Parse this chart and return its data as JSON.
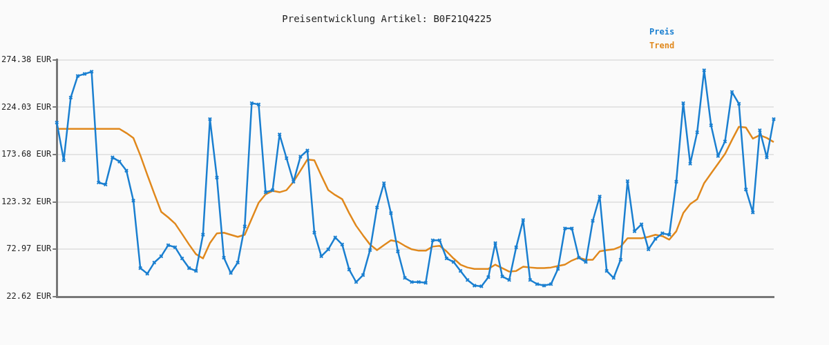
{
  "chart_data": {
    "type": "line",
    "title": "Preisentwicklung Artikel: B0F21Q4225",
    "categories": [
      null,
      null,
      null,
      null,
      null,
      null,
      null,
      null,
      null,
      null,
      null,
      null,
      null,
      null,
      null,
      null,
      null,
      null,
      null,
      null,
      null,
      null,
      null,
      null,
      null,
      null,
      null,
      null,
      null,
      null,
      null,
      null,
      null,
      null,
      null,
      null,
      null,
      null,
      null,
      null,
      null,
      null,
      null,
      null,
      null,
      null,
      null,
      null,
      null,
      null,
      null,
      null,
      null,
      null,
      null,
      null,
      null,
      null,
      null,
      null,
      null,
      null,
      null,
      null,
      null,
      null,
      null,
      null,
      null,
      null,
      null,
      null,
      null,
      null,
      null,
      null,
      null,
      null,
      null,
      null,
      null,
      null,
      null,
      null,
      null,
      null,
      null,
      null,
      null,
      null,
      null,
      null,
      null,
      null,
      null,
      null,
      null,
      null,
      null,
      null,
      null,
      null,
      null,
      null
    ],
    "series": [
      {
        "name": "Preis",
        "color": "#1a7fd0",
        "marker": "cross",
        "values": [
          207.7,
          167.7,
          234.4,
          257.3,
          259.5,
          261.8,
          144.0,
          141.8,
          170.7,
          166.3,
          156.6,
          124.8,
          53.0,
          47.1,
          58.9,
          65.6,
          77.4,
          75.2,
          63.3,
          53.0,
          50.0,
          88.5,
          211.4,
          149.2,
          64.1,
          47.8,
          58.9,
          97.4,
          228.4,
          227.0,
          133.7,
          135.9,
          195.1,
          169.9,
          144.8,
          171.4,
          178.1,
          90.7,
          65.6,
          73.0,
          85.6,
          78.1,
          51.5,
          38.2,
          45.6,
          72.2,
          117.4,
          143.3,
          111.5,
          70.8,
          42.6,
          38.2,
          38.2,
          37.4,
          82.6,
          82.6,
          63.3,
          59.6,
          50.0,
          40.4,
          34.5,
          33.7,
          43.4,
          79.6,
          44.1,
          40.4,
          75.2,
          104.1,
          40.4,
          36.0,
          34.5,
          36.0,
          52.2,
          95.2,
          95.2,
          64.1,
          59.6,
          103.3,
          129.2,
          50.0,
          42.6,
          61.9,
          145.5,
          92.2,
          99.6,
          73.0,
          84.1,
          90.0,
          88.5,
          144.8,
          228.4,
          164.0,
          197.4,
          263.3,
          204.8,
          172.2,
          187.7,
          240.3,
          227.7,
          136.6,
          112.2,
          199.6,
          170.7,
          211.4
        ]
      },
      {
        "name": "Trend",
        "color": "#e0881c",
        "marker": "none",
        "values": [
          201.1,
          201.1,
          201.1,
          201.1,
          201.1,
          201.1,
          201.1,
          201.1,
          201.1,
          201.1,
          196.6,
          191.4,
          172.9,
          152.2,
          132.2,
          112.9,
          107.0,
          100.3,
          89.3,
          78.1,
          67.8,
          63.3,
          79.6,
          90.0,
          90.7,
          88.5,
          86.3,
          88.5,
          105.5,
          122.6,
          131.5,
          135.2,
          133.7,
          135.9,
          144.8,
          156.6,
          168.5,
          167.7,
          151.4,
          135.9,
          130.7,
          126.3,
          111.5,
          98.1,
          87.8,
          78.1,
          72.2,
          77.4,
          82.6,
          81.1,
          76.7,
          73.0,
          71.5,
          71.5,
          75.9,
          76.7,
          70.8,
          63.3,
          56.7,
          53.7,
          52.2,
          52.2,
          52.2,
          56.7,
          53.0,
          49.3,
          50.0,
          54.5,
          53.7,
          53.0,
          53.0,
          53.7,
          55.2,
          56.7,
          61.1,
          64.1,
          61.9,
          61.9,
          70.8,
          72.2,
          73.0,
          75.9,
          84.8,
          84.8,
          84.8,
          86.3,
          88.5,
          87.0,
          83.3,
          92.2,
          111.5,
          121.1,
          126.3,
          143.3,
          153.7,
          164.0,
          174.4,
          189.2,
          203.3,
          202.5,
          190.7,
          194.4,
          191.4,
          187.0
        ]
      }
    ],
    "ylim": [
      22.62,
      274.38
    ],
    "yticks": [
      {
        "value": 22.62,
        "label": "22.62 EUR"
      },
      {
        "value": 72.97,
        "label": "72.97 EUR"
      },
      {
        "value": 123.32,
        "label": "123.32 EUR"
      },
      {
        "value": 173.68,
        "label": "173.68 EUR"
      },
      {
        "value": 224.03,
        "label": "224.03 EUR"
      },
      {
        "value": 274.38,
        "label": "274.38 EUR"
      }
    ],
    "grid": "y",
    "legend": "top right",
    "line_style": "solid",
    "tick_labels": "y"
  }
}
